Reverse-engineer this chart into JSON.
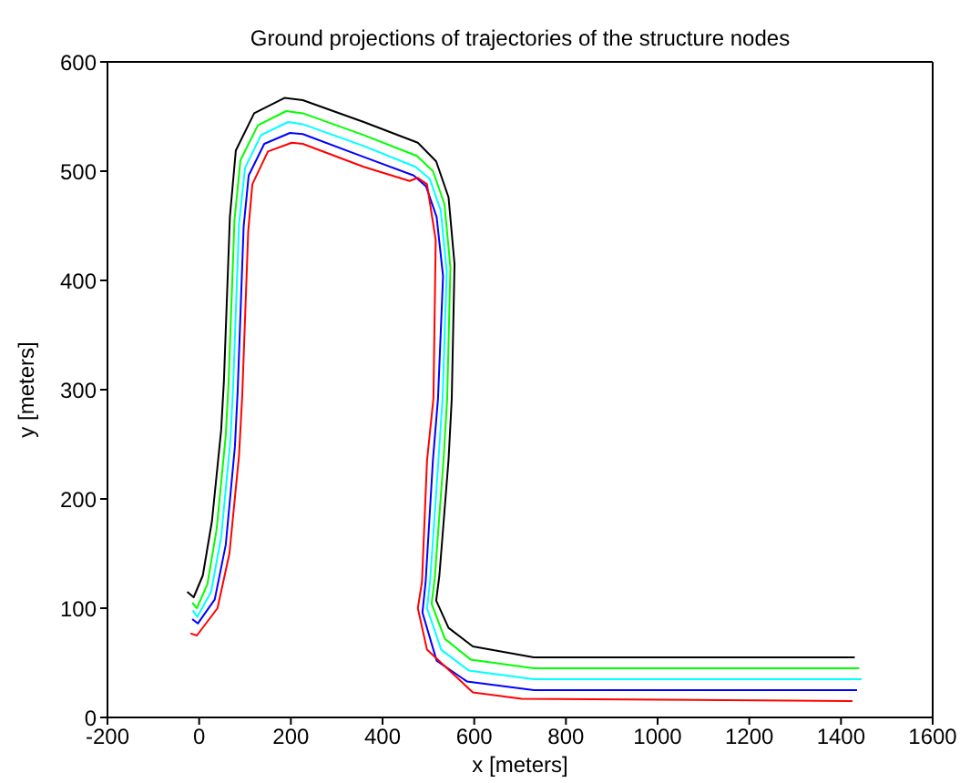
{
  "chart_data": {
    "type": "line",
    "title": "Ground projections of trajectories of the structure nodes",
    "xlabel": "x [meters]",
    "ylabel": "y [meters]",
    "xlim": [
      -200,
      1600
    ],
    "xticks": [
      -200,
      0,
      200,
      400,
      600,
      800,
      1000,
      1200,
      1400,
      1600
    ],
    "ylim": [
      0,
      600
    ],
    "yticks": [
      0,
      100,
      200,
      300,
      400,
      500,
      600
    ],
    "grid": false,
    "series": [
      {
        "color": "#000000",
        "x": [
          -26,
          -12,
          8,
          28,
          48,
          54,
          67,
          80,
          120,
          186,
          226,
          359,
          477,
          517,
          544,
          557,
          551,
          544,
          524,
          517,
          544,
          597,
          730,
          1430
        ],
        "values": [
          115,
          110,
          130,
          180,
          263,
          308,
          458,
          519,
          553,
          567,
          565,
          545,
          526,
          509,
          476,
          415,
          292,
          236,
          130,
          107,
          82,
          65,
          55,
          55
        ]
      },
      {
        "color": "#00ff00",
        "x": [
          -15,
          -5,
          18,
          38,
          58,
          64,
          77,
          90,
          128,
          190,
          226,
          359,
          475,
          510,
          535,
          548,
          541,
          533,
          514,
          507,
          536,
          592,
          730,
          1440
        ],
        "values": [
          105,
          100,
          122,
          172,
          258,
          305,
          455,
          510,
          542,
          555,
          553,
          533,
          514,
          500,
          470,
          412,
          292,
          236,
          128,
          104,
          72,
          53,
          45,
          45
        ]
      },
      {
        "color": "#00ffff",
        "x": [
          -14,
          -4,
          26,
          48,
          68,
          74,
          87,
          100,
          135,
          194,
          226,
          359,
          472,
          503,
          527,
          540,
          531,
          522,
          504,
          497,
          528,
          588,
          730,
          1445
        ],
        "values": [
          98,
          92,
          115,
          165,
          253,
          302,
          452,
          503,
          533,
          545,
          543,
          523,
          504,
          493,
          464,
          408,
          292,
          236,
          126,
          100,
          62,
          43,
          35,
          35
        ]
      },
      {
        "color": "#0000ff",
        "x": [
          -15,
          -3,
          34,
          58,
          78,
          84,
          97,
          108,
          142,
          198,
          226,
          359,
          468,
          495,
          518,
          532,
          521,
          510,
          494,
          487,
          518,
          584,
          730,
          1435
        ],
        "values": [
          90,
          86,
          108,
          158,
          248,
          299,
          449,
          496,
          525,
          535,
          534,
          513,
          496,
          486,
          458,
          404,
          292,
          236,
          124,
          96,
          52,
          33,
          25,
          25
        ]
      },
      {
        "color": "#ff0000",
        "x": [
          -19,
          -5,
          40,
          66,
          87,
          94,
          107,
          116,
          150,
          202,
          226,
          359,
          459,
          477,
          497,
          516,
          511,
          497,
          486,
          477,
          497,
          597,
          703,
          1425
        ],
        "values": [
          77,
          75,
          100,
          150,
          240,
          295,
          445,
          488,
          518,
          526,
          525,
          504,
          491,
          494,
          488,
          437,
          292,
          235,
          124,
          100,
          62,
          23,
          17,
          15
        ]
      }
    ]
  }
}
